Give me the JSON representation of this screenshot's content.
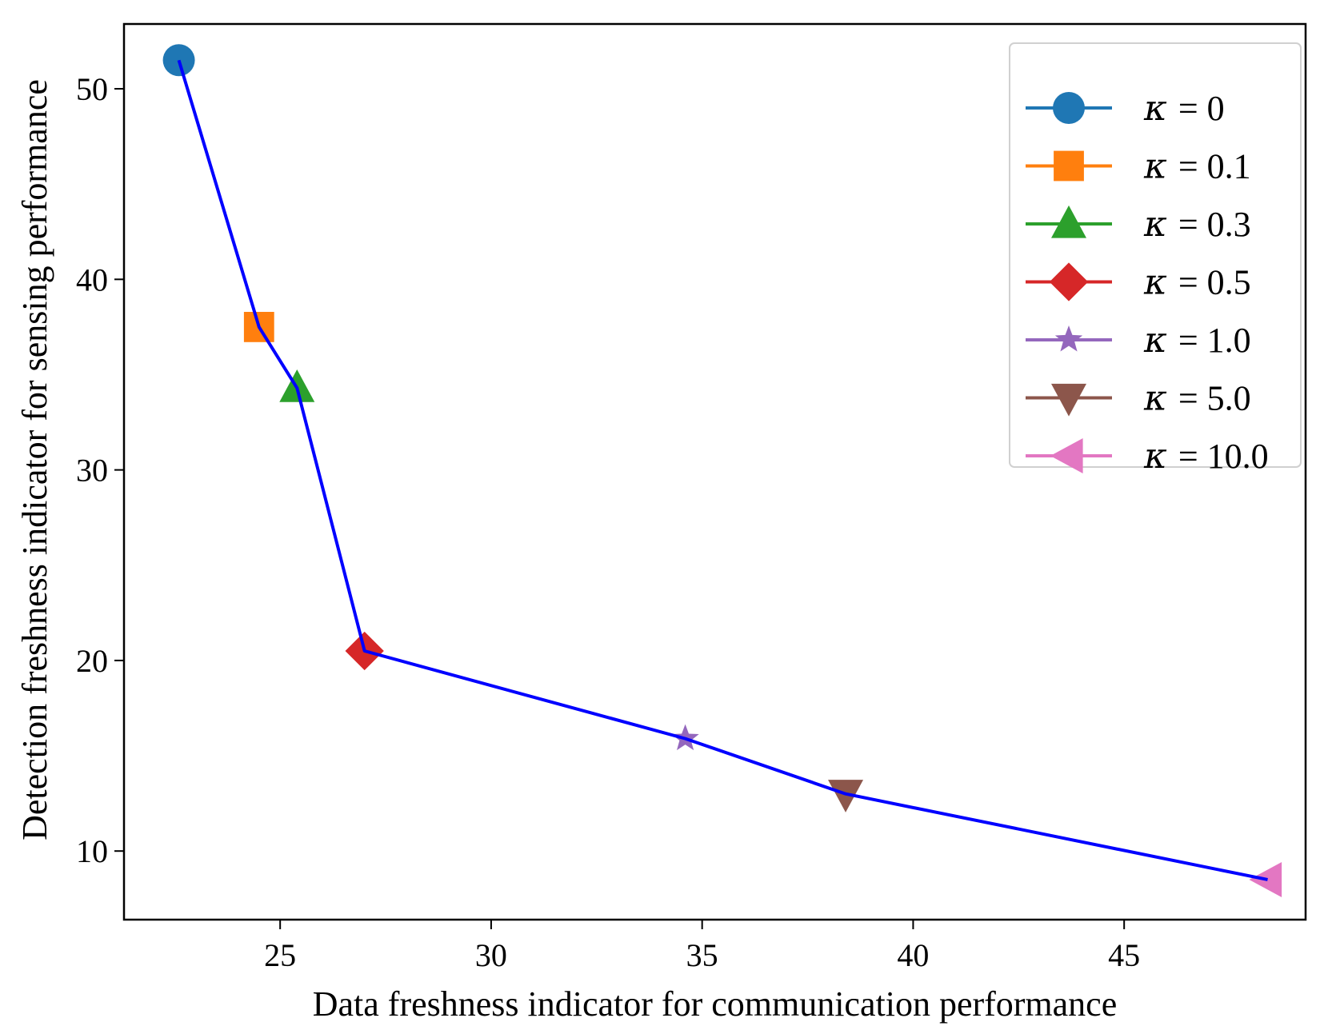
{
  "chart_data": {
    "type": "line",
    "title": "",
    "xlabel": "Data freshness indicator for communication performance",
    "ylabel": "Detection freshness indicator for sensing performance",
    "xlim": [
      21.3,
      49.3
    ],
    "ylim": [
      6.4,
      53.4
    ],
    "xticks": [
      25,
      30,
      35,
      40,
      45
    ],
    "yticks": [
      10,
      20,
      30,
      40,
      50
    ],
    "grid": false,
    "legend_position": "top-right",
    "line": {
      "name": "tradeoff-curve",
      "color": "#0000ff",
      "x": [
        22.6,
        24.5,
        25.4,
        27.0,
        34.6,
        38.4,
        48.4
      ],
      "y": [
        51.5,
        37.5,
        34.3,
        20.5,
        15.9,
        13.0,
        8.5
      ]
    },
    "series": [
      {
        "name": "κ = 0",
        "kappa": "κ",
        "value_text": "= 0",
        "marker": "circle",
        "color": "#1f77b4",
        "x": 22.6,
        "y": 51.5
      },
      {
        "name": "κ = 0.1",
        "kappa": "κ",
        "value_text": "= 0.1",
        "marker": "square",
        "color": "#ff7f0e",
        "x": 24.5,
        "y": 37.5
      },
      {
        "name": "κ = 0.3",
        "kappa": "κ",
        "value_text": "= 0.3",
        "marker": "triangle-up",
        "color": "#2ca02c",
        "x": 25.4,
        "y": 34.3
      },
      {
        "name": "κ = 0.5",
        "kappa": "κ",
        "value_text": "= 0.5",
        "marker": "diamond",
        "color": "#d62728",
        "x": 27.0,
        "y": 20.5
      },
      {
        "name": "κ = 1.0",
        "kappa": "κ",
        "value_text": "= 1.0",
        "marker": "star",
        "color": "#9467bd",
        "x": 34.6,
        "y": 15.9
      },
      {
        "name": "κ = 5.0",
        "kappa": "κ",
        "value_text": "= 5.0",
        "marker": "triangle-down",
        "color": "#8c564b",
        "x": 38.4,
        "y": 13.0
      },
      {
        "name": "κ = 10.0",
        "kappa": "κ",
        "value_text": "= 10.0",
        "marker": "triangle-left",
        "color": "#e377c2",
        "x": 48.4,
        "y": 8.5
      }
    ]
  }
}
